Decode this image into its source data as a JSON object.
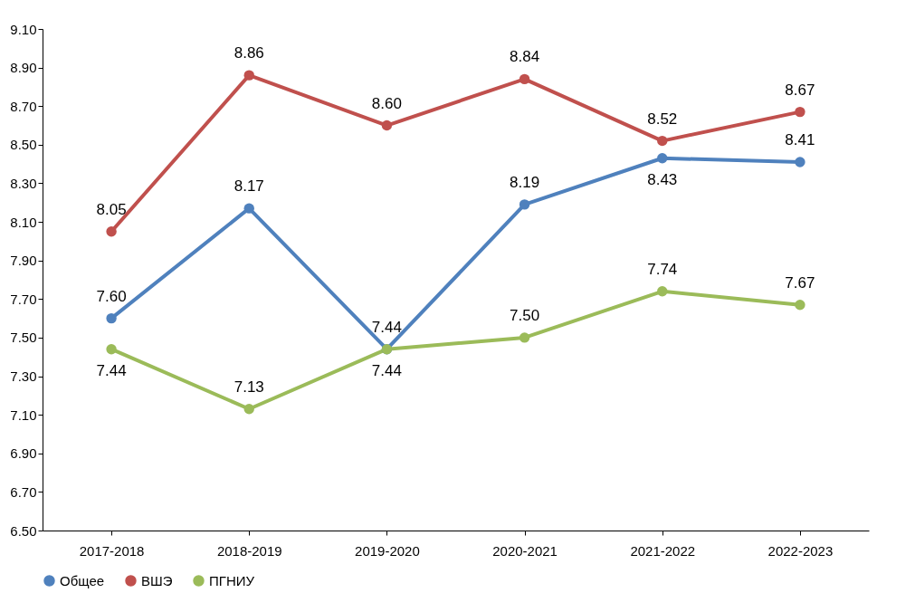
{
  "chart_data": {
    "type": "line",
    "categories": [
      "2017-2018",
      "2018-2019",
      "2019-2020",
      "2020-2021",
      "2021-2022",
      "2022-2023"
    ],
    "ylim": [
      6.5,
      9.1
    ],
    "yticks": [
      {
        "value": 6.5,
        "label": "6.50"
      },
      {
        "value": 6.7,
        "label": "6.70"
      },
      {
        "value": 6.9,
        "label": "6.90"
      },
      {
        "value": 7.1,
        "label": "7.10"
      },
      {
        "value": 7.3,
        "label": "7.30"
      },
      {
        "value": 7.5,
        "label": "7.50"
      },
      {
        "value": 7.7,
        "label": "7.70"
      },
      {
        "value": 7.9,
        "label": "7.90"
      },
      {
        "value": 8.1,
        "label": "8.10"
      },
      {
        "value": 8.3,
        "label": "8.30"
      },
      {
        "value": 8.5,
        "label": "8.50"
      },
      {
        "value": 8.7,
        "label": "8.70"
      },
      {
        "value": 8.9,
        "label": "8.90"
      },
      {
        "value": 9.1,
        "label": "9.10"
      }
    ],
    "grid": false,
    "legend": "bottom",
    "marker": "circle",
    "line_style": "solid",
    "series": [
      {
        "name": "Общее",
        "color": "#4f81bd",
        "values": [
          7.6,
          8.17,
          7.44,
          8.19,
          8.43,
          8.41
        ],
        "value_labels": [
          "7.60",
          "8.17",
          "7.44",
          "8.19",
          "8.43",
          "8.41"
        ]
      },
      {
        "name": "ВШЭ",
        "color": "#c0504d",
        "values": [
          8.05,
          8.86,
          8.6,
          8.84,
          8.52,
          8.67
        ],
        "value_labels": [
          "8.05",
          "8.86",
          "8.60",
          "8.84",
          "8.52",
          "8.67"
        ]
      },
      {
        "name": "ПГНИУ",
        "color": "#9bbb59",
        "values": [
          7.44,
          7.13,
          7.44,
          7.5,
          7.74,
          7.67
        ],
        "value_labels": [
          "7.44",
          "7.13",
          "7.44",
          "7.50",
          "7.74",
          "7.67"
        ]
      }
    ]
  }
}
